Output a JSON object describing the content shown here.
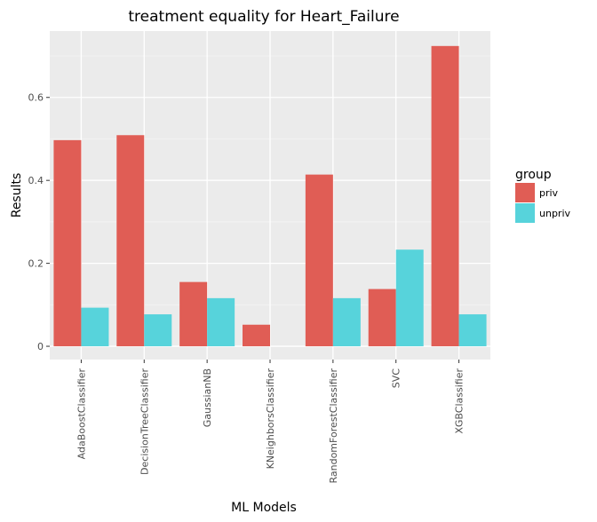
{
  "chart_data": {
    "type": "bar",
    "title": "treatment equality for Heart_Failure",
    "xlabel": "ML Models",
    "ylabel": "Results",
    "categories": [
      "AdaBoostClassifier",
      "DecisionTreeClassifier",
      "GaussianNB",
      "KNeighborsClassifier",
      "RandomForestClassifier",
      "SVC",
      "XGBClassifier"
    ],
    "series": [
      {
        "name": "priv",
        "color": "#E05D55",
        "values": [
          0.497,
          0.509,
          0.155,
          0.052,
          0.414,
          0.138,
          0.724
        ]
      },
      {
        "name": "unpriv",
        "color": "#57D3DB",
        "values": [
          0.093,
          0.077,
          0.116,
          0.0,
          0.116,
          0.233,
          0.077
        ]
      }
    ],
    "ylim": [
      -0.032,
      0.76
    ],
    "yticks": [
      0,
      0.2,
      0.4,
      0.6
    ],
    "ytick_labels": [
      "0",
      "0.2",
      "0.4",
      "0.6"
    ],
    "grid": true,
    "legend": {
      "title": "group",
      "position": "right"
    }
  }
}
